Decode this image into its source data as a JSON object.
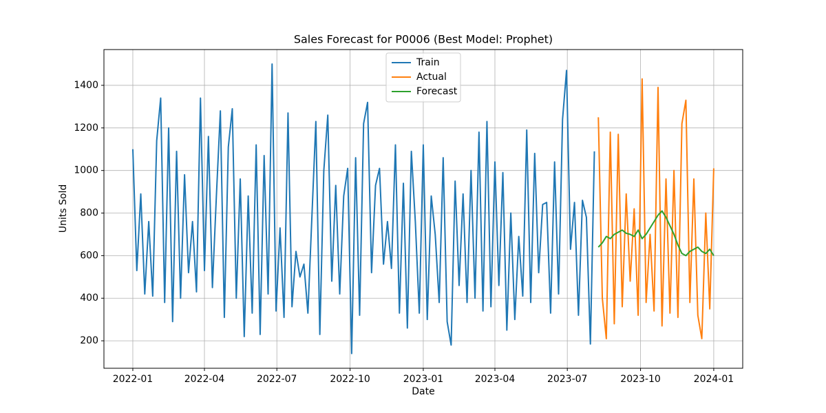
{
  "chart_data": {
    "type": "line",
    "title": "Sales Forecast for P0006 (Best Model: Prophet)",
    "x_label": "Date",
    "y_label": "Units Sold",
    "xlim": [
      -36.3,
      766.4
    ],
    "ylim": [
      71,
      1568
    ],
    "xticks": [
      {
        "value": 0,
        "label": "2022-01"
      },
      {
        "value": 90,
        "label": "2022-04"
      },
      {
        "value": 181,
        "label": "2022-07"
      },
      {
        "value": 273,
        "label": "2022-10"
      },
      {
        "value": 365,
        "label": "2023-01"
      },
      {
        "value": 455,
        "label": "2023-04"
      },
      {
        "value": 546,
        "label": "2023-07"
      },
      {
        "value": 638,
        "label": "2023-10"
      },
      {
        "value": 730,
        "label": "2024-01"
      }
    ],
    "yticks": [
      200,
      400,
      600,
      800,
      1000,
      1200,
      1400
    ],
    "grid": true,
    "legend": "upper center",
    "series": [
      {
        "name": "Train",
        "color": "#1f77b4",
        "x": [
          0,
          5,
          10,
          15,
          20,
          25,
          30,
          35,
          40,
          45,
          50,
          55,
          60,
          65,
          70,
          75,
          80,
          85,
          90,
          95,
          100,
          105,
          110,
          115,
          120,
          125,
          130,
          135,
          140,
          145,
          150,
          155,
          160,
          165,
          170,
          175,
          180,
          185,
          190,
          195,
          200,
          205,
          210,
          215,
          220,
          225,
          230,
          235,
          240,
          245,
          250,
          255,
          260,
          265,
          270,
          275,
          280,
          285,
          290,
          295,
          300,
          305,
          310,
          315,
          320,
          325,
          330,
          335,
          340,
          345,
          350,
          355,
          360,
          365,
          370,
          375,
          380,
          385,
          390,
          395,
          400,
          405,
          410,
          415,
          420,
          425,
          430,
          435,
          440,
          445,
          450,
          455,
          460,
          465,
          470,
          475,
          480,
          485,
          490,
          495,
          500,
          505,
          510,
          515,
          520,
          525,
          530,
          535,
          540,
          545,
          550,
          555,
          560,
          565,
          570,
          575,
          580
        ],
        "values": [
          1100,
          530,
          890,
          420,
          760,
          410,
          1140,
          1340,
          380,
          1200,
          290,
          1090,
          400,
          980,
          520,
          760,
          430,
          1340,
          530,
          1160,
          450,
          880,
          1280,
          310,
          1110,
          1290,
          400,
          960,
          220,
          880,
          330,
          1120,
          230,
          1070,
          420,
          1500,
          340,
          730,
          310,
          1270,
          360,
          620,
          500,
          560,
          330,
          780,
          1230,
          230,
          1000,
          1260,
          480,
          930,
          420,
          880,
          1010,
          140,
          1060,
          320,
          1220,
          1320,
          520,
          930,
          1010,
          560,
          760,
          540,
          1120,
          330,
          940,
          260,
          1090,
          760,
          330,
          1120,
          300,
          880,
          700,
          380,
          1060,
          290,
          180,
          950,
          460,
          890,
          380,
          1000,
          400,
          1180,
          340,
          1230,
          360,
          1040,
          460,
          990,
          250,
          800,
          300,
          690,
          410,
          1190,
          380,
          1080,
          520,
          840,
          850,
          330,
          1040,
          420,
          1240,
          1470,
          630,
          850,
          320,
          860,
          780,
          185,
          1090
        ]
      },
      {
        "name": "Actual",
        "color": "#ff7f0e",
        "x": [
          585,
          590,
          595,
          600,
          605,
          610,
          615,
          620,
          625,
          630,
          635,
          640,
          645,
          650,
          655,
          660,
          665,
          670,
          675,
          680,
          685,
          690,
          695,
          700,
          705,
          710,
          715,
          720,
          725,
          730
        ],
        "values": [
          1250,
          400,
          210,
          1180,
          280,
          1170,
          360,
          890,
          480,
          820,
          320,
          1430,
          380,
          700,
          340,
          1390,
          270,
          960,
          330,
          1000,
          310,
          1220,
          1330,
          380,
          960,
          320,
          210,
          800,
          350,
          1010
        ]
      },
      {
        "name": "Forecast",
        "color": "#2ca02c",
        "x": [
          585,
          590,
          595,
          600,
          605,
          610,
          615,
          620,
          625,
          630,
          635,
          640,
          645,
          650,
          655,
          660,
          665,
          670,
          675,
          680,
          685,
          690,
          695,
          700,
          705,
          710,
          715,
          720,
          725,
          730
        ],
        "values": [
          640,
          660,
          690,
          680,
          700,
          710,
          720,
          705,
          700,
          690,
          720,
          680,
          700,
          730,
          760,
          790,
          810,
          780,
          740,
          700,
          650,
          610,
          600,
          620,
          630,
          640,
          620,
          610,
          630,
          600
        ]
      }
    ]
  }
}
